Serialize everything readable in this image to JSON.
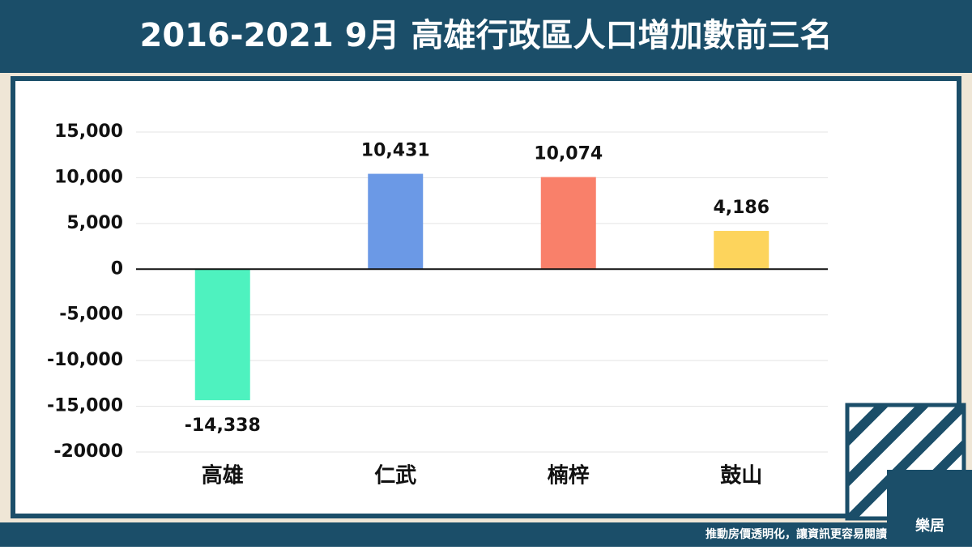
{
  "chart_data": {
    "type": "bar",
    "title": "2016-2021 9月 高雄行政區人口增加數前三名",
    "categories": [
      "高雄",
      "仁武",
      "楠梓",
      "鼓山"
    ],
    "values": [
      -14338,
      10431,
      10074,
      4186
    ],
    "value_labels": [
      "-14,338",
      "10,431",
      "10,074",
      "4,186"
    ],
    "colors": [
      "#4ef2bf",
      "#6b99e6",
      "#f9806a",
      "#fdd45c"
    ],
    "ylim": [
      -20000,
      15000
    ],
    "yticks": [
      -20000,
      {
        "value": -15000,
        "label": "-15,000"
      },
      {
        "value": -10000,
        "label": "-10,000"
      },
      {
        "value": -5000,
        "label": "-5,000"
      },
      0,
      {
        "value": 5000,
        "label": "5,000"
      },
      {
        "value": 10000,
        "label": "10,000"
      },
      {
        "value": 15000,
        "label": "15,000"
      }
    ],
    "grid": true
  },
  "footer": {
    "slogan": "推動房價透明化，讓資訊更容易閱讀",
    "logo": "樂居"
  }
}
